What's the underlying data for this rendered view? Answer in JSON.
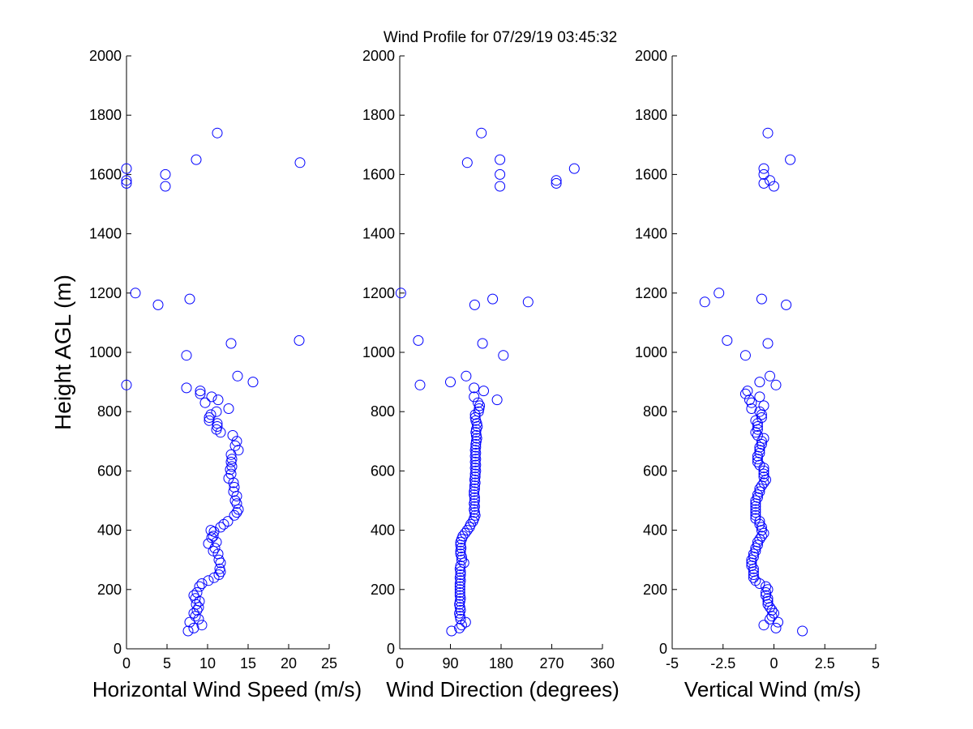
{
  "figure": {
    "title": "Wind Profile for  07/29/19 03:45:32",
    "marker_color": "#0000ff"
  },
  "chart_data": [
    {
      "type": "scatter",
      "xlabel": "Horizontal Wind Speed (m/s)",
      "ylabel": "Height AGL (m)",
      "xlim": [
        0,
        25
      ],
      "ylim": [
        0,
        2000
      ],
      "xticks": [
        "0",
        "5",
        "10",
        "15",
        "20",
        "25"
      ],
      "yticks": [
        "0",
        "200",
        "400",
        "600",
        "800",
        "1000",
        "1200",
        "1400",
        "1600",
        "1800",
        "2000"
      ],
      "grid": false,
      "legend": "none",
      "points": [
        [
          7.6,
          60
        ],
        [
          8.3,
          70
        ],
        [
          9.3,
          80
        ],
        [
          7.8,
          90
        ],
        [
          8.9,
          100
        ],
        [
          8.5,
          110
        ],
        [
          8.3,
          120
        ],
        [
          8.7,
          130
        ],
        [
          8.9,
          140
        ],
        [
          8.6,
          150
        ],
        [
          9.0,
          160
        ],
        [
          8.5,
          170
        ],
        [
          8.3,
          180
        ],
        [
          8.7,
          190
        ],
        [
          9.0,
          210
        ],
        [
          9.3,
          220
        ],
        [
          10.1,
          230
        ],
        [
          10.8,
          240
        ],
        [
          11.4,
          250
        ],
        [
          11.6,
          260
        ],
        [
          11.5,
          270
        ],
        [
          11.6,
          290
        ],
        [
          11.4,
          300
        ],
        [
          11.3,
          320
        ],
        [
          10.7,
          330
        ],
        [
          10.9,
          340
        ],
        [
          10.1,
          355
        ],
        [
          11.1,
          360
        ],
        [
          10.5,
          375
        ],
        [
          10.7,
          380
        ],
        [
          10.8,
          395
        ],
        [
          10.4,
          400
        ],
        [
          11.6,
          410
        ],
        [
          12.0,
          420
        ],
        [
          12.5,
          430
        ],
        [
          13.3,
          450
        ],
        [
          13.6,
          460
        ],
        [
          13.8,
          470
        ],
        [
          13.6,
          490
        ],
        [
          13.4,
          500
        ],
        [
          13.6,
          515
        ],
        [
          13.2,
          530
        ],
        [
          13.3,
          545
        ],
        [
          13.2,
          560
        ],
        [
          12.6,
          575
        ],
        [
          12.9,
          590
        ],
        [
          12.8,
          605
        ],
        [
          13.0,
          615
        ],
        [
          12.9,
          630
        ],
        [
          13.0,
          640
        ],
        [
          12.9,
          655
        ],
        [
          13.8,
          670
        ],
        [
          13.4,
          685
        ],
        [
          13.6,
          700
        ],
        [
          13.1,
          720
        ],
        [
          11.6,
          730
        ],
        [
          11.1,
          740
        ],
        [
          11.2,
          750
        ],
        [
          11.2,
          760
        ],
        [
          10.2,
          770
        ],
        [
          10.2,
          780
        ],
        [
          10.4,
          790
        ],
        [
          11.1,
          800
        ],
        [
          12.6,
          810
        ],
        [
          9.7,
          830
        ],
        [
          11.3,
          840
        ],
        [
          10.5,
          850
        ],
        [
          9.1,
          860
        ],
        [
          9.1,
          870
        ],
        [
          7.4,
          880
        ],
        [
          0.0,
          890
        ],
        [
          15.6,
          900
        ],
        [
          13.7,
          920
        ],
        [
          7.4,
          990
        ],
        [
          12.9,
          1030
        ],
        [
          21.3,
          1040
        ],
        [
          3.9,
          1160
        ],
        [
          7.8,
          1180
        ],
        [
          1.1,
          1200
        ],
        [
          0.0,
          1570
        ],
        [
          0.0,
          1580
        ],
        [
          4.8,
          1560
        ],
        [
          4.8,
          1600
        ],
        [
          0.0,
          1620
        ],
        [
          21.4,
          1640
        ],
        [
          8.6,
          1650
        ],
        [
          11.2,
          1740
        ]
      ]
    },
    {
      "type": "scatter",
      "xlabel": "Wind Direction (degrees)",
      "ylabel": "",
      "xlim": [
        0,
        360
      ],
      "ylim": [
        0,
        2000
      ],
      "xticks": [
        "0",
        "90",
        "180",
        "270",
        "360"
      ],
      "yticks": [
        "0",
        "200",
        "400",
        "600",
        "800",
        "1000",
        "1200",
        "1400",
        "1600",
        "1800",
        "2000"
      ],
      "grid": false,
      "legend": "none",
      "points": [
        [
          92,
          60
        ],
        [
          106,
          70
        ],
        [
          110,
          80
        ],
        [
          117,
          90
        ],
        [
          108,
          100
        ],
        [
          107,
          110
        ],
        [
          106,
          120
        ],
        [
          108,
          130
        ],
        [
          107,
          140
        ],
        [
          106,
          150
        ],
        [
          107,
          160
        ],
        [
          108,
          170
        ],
        [
          107,
          180
        ],
        [
          107,
          190
        ],
        [
          107,
          200
        ],
        [
          107,
          210
        ],
        [
          107,
          220
        ],
        [
          108,
          230
        ],
        [
          107,
          240
        ],
        [
          108,
          250
        ],
        [
          108,
          260
        ],
        [
          107,
          270
        ],
        [
          108,
          280
        ],
        [
          114,
          290
        ],
        [
          110,
          300
        ],
        [
          110,
          310
        ],
        [
          108,
          320
        ],
        [
          108,
          330
        ],
        [
          109,
          340
        ],
        [
          108,
          350
        ],
        [
          108,
          360
        ],
        [
          110,
          370
        ],
        [
          112,
          380
        ],
        [
          116,
          390
        ],
        [
          120,
          400
        ],
        [
          124,
          410
        ],
        [
          126,
          420
        ],
        [
          130,
          430
        ],
        [
          132,
          440
        ],
        [
          134,
          450
        ],
        [
          133,
          460
        ],
        [
          132,
          470
        ],
        [
          133,
          480
        ],
        [
          132,
          490
        ],
        [
          133,
          500
        ],
        [
          133,
          510
        ],
        [
          132,
          520
        ],
        [
          132,
          530
        ],
        [
          133,
          540
        ],
        [
          133,
          550
        ],
        [
          134,
          560
        ],
        [
          133,
          570
        ],
        [
          134,
          580
        ],
        [
          134,
          590
        ],
        [
          135,
          600
        ],
        [
          134,
          610
        ],
        [
          135,
          620
        ],
        [
          134,
          630
        ],
        [
          135,
          640
        ],
        [
          134,
          650
        ],
        [
          135,
          660
        ],
        [
          134,
          670
        ],
        [
          135,
          680
        ],
        [
          135,
          690
        ],
        [
          136,
          700
        ],
        [
          137,
          710
        ],
        [
          136,
          720
        ],
        [
          135,
          730
        ],
        [
          136,
          740
        ],
        [
          138,
          750
        ],
        [
          137,
          760
        ],
        [
          135,
          770
        ],
        [
          134,
          780
        ],
        [
          134,
          790
        ],
        [
          140,
          800
        ],
        [
          141,
          810
        ],
        [
          142,
          820
        ],
        [
          139,
          830
        ],
        [
          173,
          840
        ],
        [
          132,
          850
        ],
        [
          149,
          870
        ],
        [
          132,
          880
        ],
        [
          36,
          890
        ],
        [
          90,
          900
        ],
        [
          118,
          920
        ],
        [
          184,
          990
        ],
        [
          147,
          1030
        ],
        [
          33,
          1040
        ],
        [
          133,
          1160
        ],
        [
          228,
          1170
        ],
        [
          165,
          1180
        ],
        [
          2,
          1200
        ],
        [
          178,
          1560
        ],
        [
          278,
          1570
        ],
        [
          278,
          1580
        ],
        [
          178,
          1600
        ],
        [
          310,
          1620
        ],
        [
          120,
          1640
        ],
        [
          178,
          1650
        ],
        [
          145,
          1740
        ]
      ]
    },
    {
      "type": "scatter",
      "xlabel": "Vertical Wind (m/s)",
      "ylabel": "",
      "xlim": [
        -5,
        5
      ],
      "ylim": [
        0,
        2000
      ],
      "xticks": [
        "-5",
        "-2.5",
        "0",
        "2.5",
        "5"
      ],
      "yticks": [
        "0",
        "200",
        "400",
        "600",
        "800",
        "1000",
        "1200",
        "1400",
        "1600",
        "1800",
        "2000"
      ],
      "grid": false,
      "legend": "none",
      "points": [
        [
          1.4,
          60
        ],
        [
          0.1,
          70
        ],
        [
          -0.5,
          80
        ],
        [
          0.2,
          90
        ],
        [
          -0.2,
          100
        ],
        [
          -0.1,
          110
        ],
        [
          0.0,
          120
        ],
        [
          -0.1,
          130
        ],
        [
          -0.2,
          140
        ],
        [
          -0.3,
          150
        ],
        [
          -0.3,
          160
        ],
        [
          -0.3,
          170
        ],
        [
          -0.4,
          180
        ],
        [
          -0.4,
          190
        ],
        [
          -0.3,
          200
        ],
        [
          -0.4,
          210
        ],
        [
          -0.7,
          220
        ],
        [
          -0.9,
          230
        ],
        [
          -1.0,
          240
        ],
        [
          -1.0,
          250
        ],
        [
          -1.0,
          260
        ],
        [
          -1.0,
          270
        ],
        [
          -1.1,
          280
        ],
        [
          -1.1,
          290
        ],
        [
          -1.1,
          300
        ],
        [
          -1.0,
          310
        ],
        [
          -1.0,
          320
        ],
        [
          -0.9,
          330
        ],
        [
          -0.9,
          340
        ],
        [
          -0.8,
          350
        ],
        [
          -0.8,
          360
        ],
        [
          -0.7,
          370
        ],
        [
          -0.6,
          380
        ],
        [
          -0.5,
          390
        ],
        [
          -0.6,
          400
        ],
        [
          -0.6,
          410
        ],
        [
          -0.7,
          420
        ],
        [
          -0.7,
          430
        ],
        [
          -0.9,
          440
        ],
        [
          -0.9,
          450
        ],
        [
          -0.9,
          460
        ],
        [
          -0.9,
          470
        ],
        [
          -0.9,
          480
        ],
        [
          -0.9,
          490
        ],
        [
          -0.9,
          500
        ],
        [
          -0.8,
          510
        ],
        [
          -0.8,
          520
        ],
        [
          -0.7,
          530
        ],
        [
          -0.7,
          540
        ],
        [
          -0.6,
          550
        ],
        [
          -0.5,
          560
        ],
        [
          -0.4,
          570
        ],
        [
          -0.5,
          580
        ],
        [
          -0.5,
          590
        ],
        [
          -0.5,
          600
        ],
        [
          -0.5,
          610
        ],
        [
          -0.7,
          620
        ],
        [
          -0.8,
          630
        ],
        [
          -0.8,
          640
        ],
        [
          -0.8,
          650
        ],
        [
          -0.7,
          660
        ],
        [
          -0.7,
          670
        ],
        [
          -0.7,
          680
        ],
        [
          -0.6,
          690
        ],
        [
          -0.6,
          700
        ],
        [
          -0.5,
          710
        ],
        [
          -0.8,
          720
        ],
        [
          -0.9,
          730
        ],
        [
          -0.8,
          740
        ],
        [
          -0.8,
          750
        ],
        [
          -0.8,
          760
        ],
        [
          -0.9,
          770
        ],
        [
          -0.6,
          780
        ],
        [
          -0.6,
          790
        ],
        [
          -0.7,
          800
        ],
        [
          -1.1,
          810
        ],
        [
          -0.5,
          820
        ],
        [
          -1.1,
          830
        ],
        [
          -1.2,
          840
        ],
        [
          -0.7,
          850
        ],
        [
          -1.4,
          860
        ],
        [
          -1.3,
          870
        ],
        [
          0.1,
          890
        ],
        [
          -0.7,
          900
        ],
        [
          -0.2,
          920
        ],
        [
          -1.4,
          990
        ],
        [
          -0.3,
          1030
        ],
        [
          -2.3,
          1040
        ],
        [
          -3.4,
          1170
        ],
        [
          0.6,
          1160
        ],
        [
          -0.6,
          1180
        ],
        [
          -2.7,
          1200
        ],
        [
          0.0,
          1560
        ],
        [
          -0.5,
          1570
        ],
        [
          -0.2,
          1580
        ],
        [
          -0.5,
          1600
        ],
        [
          -0.5,
          1620
        ],
        [
          0.8,
          1650
        ],
        [
          -0.3,
          1740
        ]
      ]
    }
  ]
}
